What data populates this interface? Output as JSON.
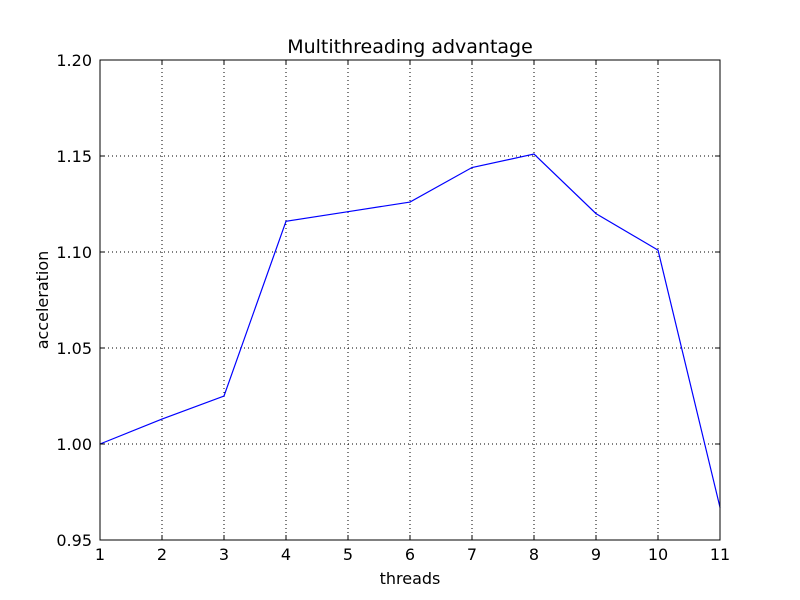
{
  "chart_data": {
    "type": "line",
    "title": "Multithreading advantage",
    "xlabel": "threads",
    "ylabel": "acceleration",
    "xlim": [
      1,
      11
    ],
    "ylim": [
      0.95,
      1.2
    ],
    "xticks": [
      "1",
      "2",
      "3",
      "4",
      "5",
      "6",
      "7",
      "8",
      "9",
      "10",
      "11"
    ],
    "yticks": [
      "0.95",
      "1.00",
      "1.05",
      "1.10",
      "1.15",
      "1.20"
    ],
    "grid": true,
    "series": [
      {
        "color": "#0000ff",
        "x": [
          1,
          2,
          3,
          4,
          5,
          6,
          7,
          8,
          9,
          10,
          11
        ],
        "y": [
          1.0,
          1.013,
          1.025,
          1.116,
          1.121,
          1.126,
          1.144,
          1.151,
          1.12,
          1.101,
          0.967
        ]
      }
    ]
  }
}
